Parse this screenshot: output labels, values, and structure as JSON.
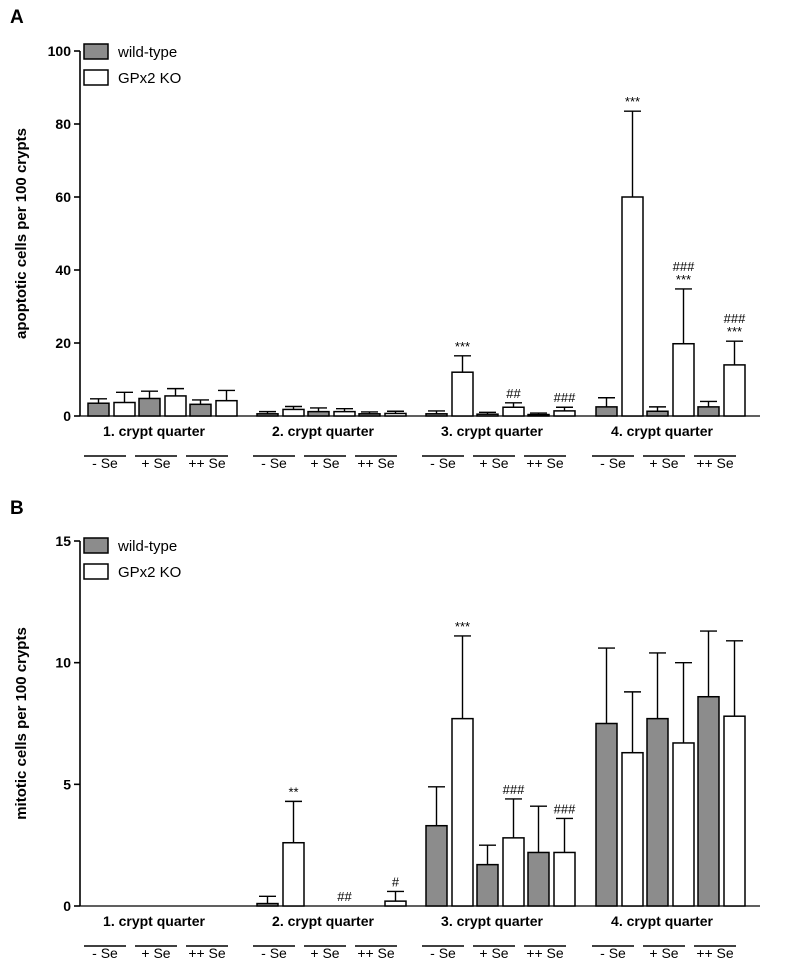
{
  "colors": {
    "wildtype": "#8c8c8c",
    "ko": "#ffffff",
    "axis": "#000000"
  },
  "panels": [
    {
      "letter": "A",
      "ylabel": "apoptotic cells per 100 crypts",
      "ylim": [
        0,
        100
      ],
      "yticks": [
        "0",
        "20",
        "40",
        "60",
        "80",
        "100"
      ]
    },
    {
      "letter": "B",
      "ylabel": "mitotic cells per 100 crypts",
      "ylim": [
        0,
        15
      ],
      "yticks": [
        "0",
        "5",
        "10",
        "15"
      ]
    }
  ],
  "chart_data": [
    {
      "type": "bar",
      "title": "A",
      "ylabel": "apoptotic cells per 100 crypts",
      "ylim": [
        0,
        100
      ],
      "legend_placement": "top-left",
      "group_labels": [
        "1. crypt quarter",
        "2. crypt quarter",
        "3. crypt quarter",
        "4. crypt quarter"
      ],
      "categories": [
        "- Se",
        "+ Se",
        "++ Se",
        "- Se",
        "+ Se",
        "++ Se",
        "- Se",
        "+ Se",
        "++ Se",
        "- Se",
        "+ Se",
        "++ Se"
      ],
      "series": [
        {
          "name": "wild-type",
          "values": [
            3.5,
            4.8,
            3.2,
            0.6,
            1.2,
            0.6,
            0.6,
            0.5,
            0.4,
            2.5,
            1.3,
            2.5
          ],
          "errors": [
            1.2,
            2.0,
            1.2,
            0.6,
            1.0,
            0.5,
            0.8,
            0.5,
            0.4,
            2.5,
            1.2,
            1.5
          ],
          "annotations": [
            "",
            "",
            "",
            "",
            "",
            "",
            "",
            "",
            "",
            "",
            "",
            ""
          ]
        },
        {
          "name": "GPx2 KO",
          "values": [
            3.7,
            5.5,
            4.2,
            1.8,
            1.2,
            0.7,
            12.0,
            2.4,
            1.4,
            60.0,
            19.8,
            14.0
          ],
          "errors": [
            2.8,
            2.0,
            2.8,
            0.8,
            0.8,
            0.6,
            4.5,
            1.2,
            1.0,
            23.5,
            15.0,
            6.5
          ],
          "annotations": [
            "",
            "",
            "",
            "",
            "",
            "",
            "***",
            "##",
            "###",
            "***",
            "###\n***",
            "###\n***"
          ]
        }
      ]
    },
    {
      "type": "bar",
      "title": "B",
      "ylabel": "mitotic cells per 100 crypts",
      "ylim": [
        0,
        15
      ],
      "legend_placement": "top-left",
      "group_labels": [
        "1. crypt quarter",
        "2. crypt quarter",
        "3. crypt quarter",
        "4. crypt quarter"
      ],
      "categories": [
        "- Se",
        "+ Se",
        "++ Se",
        "- Se",
        "+ Se",
        "++ Se",
        "- Se",
        "+ Se",
        "++ Se",
        "- Se",
        "+ Se",
        "++ Se"
      ],
      "series": [
        {
          "name": "wild-type",
          "values": [
            0,
            0,
            0,
            0.1,
            0,
            0,
            3.3,
            1.7,
            2.2,
            7.5,
            7.7,
            8.6
          ],
          "errors": [
            0,
            0,
            0,
            0.3,
            0,
            0,
            1.6,
            0.8,
            1.9,
            3.1,
            2.7,
            2.7
          ],
          "annotations": [
            "",
            "",
            "",
            "",
            "",
            "",
            "",
            "",
            "",
            "",
            "",
            ""
          ]
        },
        {
          "name": "GPx2 KO",
          "values": [
            0,
            0,
            0,
            2.6,
            0,
            0.2,
            7.7,
            2.8,
            2.2,
            6.3,
            6.7,
            7.8
          ],
          "errors": [
            0,
            0,
            0,
            1.7,
            0,
            0.4,
            3.4,
            1.6,
            1.4,
            2.5,
            3.3,
            3.1
          ],
          "annotations": [
            "",
            "",
            "",
            "**",
            "##",
            "#",
            "***",
            "###",
            "###",
            "",
            "",
            ""
          ]
        }
      ]
    }
  ]
}
